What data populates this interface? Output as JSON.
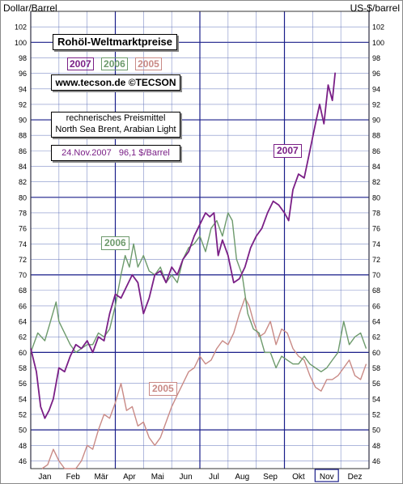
{
  "header": {
    "left_unit": "Dollar/Barrel",
    "right_unit": "US-$/barrel"
  },
  "panel": {
    "title": "Rohöl-Weltmarktpreise",
    "year_2007": "2007",
    "year_2006": "2006",
    "year_2005": "2005",
    "website": "www.tecson.de  ©TECSON",
    "desc_line1": "rechnerisches Preismittel",
    "desc_line2": "North Sea Brent, Arabian Light",
    "date": "24.Nov.2007",
    "price": "96,1  $/Barrel"
  },
  "colors": {
    "2007": "#7a1f86",
    "2006": "#6d9a6c",
    "2005": "#c98a86",
    "grid": "#4a5fb0",
    "grid_major": "#1a1f8a",
    "highlight": "#1a1f8a"
  },
  "chart_data": {
    "type": "line",
    "title": "Rohöl-Weltmarktpreise",
    "xlabel": "",
    "ylabel": "Dollar/Barrel",
    "ylim": [
      45,
      104
    ],
    "y_ticks": [
      46,
      48,
      50,
      52,
      54,
      56,
      58,
      60,
      62,
      64,
      66,
      68,
      70,
      72,
      74,
      76,
      78,
      80,
      82,
      84,
      86,
      88,
      90,
      92,
      94,
      96,
      98,
      100,
      102
    ],
    "categories": [
      "Jan",
      "Feb",
      "Mär",
      "Apr",
      "Mai",
      "Jun",
      "Jul",
      "Aug",
      "Sep",
      "Okt",
      "Nov",
      "Dez"
    ],
    "highlighted_category": "Nov",
    "series": [
      {
        "name": "2007",
        "points": [
          [
            0.0,
            60.5
          ],
          [
            0.2,
            57.5
          ],
          [
            0.35,
            53
          ],
          [
            0.5,
            51.5
          ],
          [
            0.65,
            52.5
          ],
          [
            0.8,
            54
          ],
          [
            1.0,
            58
          ],
          [
            1.2,
            57.5
          ],
          [
            1.4,
            59.5
          ],
          [
            1.6,
            61
          ],
          [
            1.8,
            60.5
          ],
          [
            2.0,
            61.5
          ],
          [
            2.2,
            60
          ],
          [
            2.4,
            62
          ],
          [
            2.6,
            61.5
          ],
          [
            2.8,
            65
          ],
          [
            3.0,
            67.5
          ],
          [
            3.2,
            67
          ],
          [
            3.4,
            68.5
          ],
          [
            3.6,
            70
          ],
          [
            3.8,
            69
          ],
          [
            4.0,
            65
          ],
          [
            4.2,
            67
          ],
          [
            4.4,
            70
          ],
          [
            4.6,
            70.5
          ],
          [
            4.8,
            69
          ],
          [
            5.0,
            71
          ],
          [
            5.2,
            70
          ],
          [
            5.4,
            72
          ],
          [
            5.6,
            73
          ],
          [
            5.8,
            75
          ],
          [
            6.0,
            76.5
          ],
          [
            6.2,
            78
          ],
          [
            6.35,
            77.5
          ],
          [
            6.5,
            78
          ],
          [
            6.65,
            72.5
          ],
          [
            6.8,
            74.5
          ],
          [
            7.0,
            72.5
          ],
          [
            7.2,
            69
          ],
          [
            7.4,
            69.5
          ],
          [
            7.6,
            71
          ],
          [
            7.8,
            73.5
          ],
          [
            8.0,
            75
          ],
          [
            8.2,
            76
          ],
          [
            8.4,
            78
          ],
          [
            8.6,
            79.5
          ],
          [
            8.8,
            79
          ],
          [
            9.0,
            78
          ],
          [
            9.15,
            77
          ],
          [
            9.3,
            81
          ],
          [
            9.5,
            83
          ],
          [
            9.7,
            82.5
          ],
          [
            9.9,
            86
          ],
          [
            10.1,
            89.5
          ],
          [
            10.25,
            92
          ],
          [
            10.4,
            89.5
          ],
          [
            10.55,
            94.5
          ],
          [
            10.7,
            92.5
          ],
          [
            10.8,
            96.1
          ]
        ]
      },
      {
        "name": "2006",
        "points": [
          [
            0.0,
            60
          ],
          [
            0.25,
            62.5
          ],
          [
            0.5,
            61.5
          ],
          [
            0.7,
            64
          ],
          [
            0.9,
            66.5
          ],
          [
            1.0,
            64
          ],
          [
            1.2,
            62.5
          ],
          [
            1.4,
            61
          ],
          [
            1.6,
            60
          ],
          [
            1.8,
            60.5
          ],
          [
            2.0,
            61
          ],
          [
            2.2,
            61
          ],
          [
            2.4,
            62.5
          ],
          [
            2.6,
            62
          ],
          [
            2.8,
            63
          ],
          [
            3.0,
            66
          ],
          [
            3.2,
            70
          ],
          [
            3.35,
            72.5
          ],
          [
            3.5,
            71
          ],
          [
            3.65,
            74
          ],
          [
            3.8,
            71
          ],
          [
            4.0,
            72.5
          ],
          [
            4.2,
            70.5
          ],
          [
            4.4,
            70
          ],
          [
            4.6,
            71
          ],
          [
            4.8,
            69
          ],
          [
            5.0,
            70
          ],
          [
            5.2,
            69
          ],
          [
            5.4,
            72
          ],
          [
            5.6,
            73.5
          ],
          [
            5.8,
            74
          ],
          [
            6.0,
            75
          ],
          [
            6.2,
            73
          ],
          [
            6.4,
            76
          ],
          [
            6.6,
            77
          ],
          [
            6.8,
            75
          ],
          [
            7.0,
            78
          ],
          [
            7.15,
            77
          ],
          [
            7.3,
            72
          ],
          [
            7.5,
            70
          ],
          [
            7.7,
            65
          ],
          [
            7.9,
            63
          ],
          [
            8.1,
            62.5
          ],
          [
            8.3,
            60
          ],
          [
            8.5,
            60
          ],
          [
            8.7,
            58
          ],
          [
            8.9,
            59.5
          ],
          [
            9.1,
            59
          ],
          [
            9.3,
            58.5
          ],
          [
            9.5,
            58.5
          ],
          [
            9.7,
            59.5
          ],
          [
            9.9,
            58.5
          ],
          [
            10.1,
            58
          ],
          [
            10.3,
            57.5
          ],
          [
            10.5,
            58
          ],
          [
            10.7,
            59
          ],
          [
            10.9,
            60
          ],
          [
            11.1,
            64
          ],
          [
            11.3,
            61
          ],
          [
            11.5,
            62
          ],
          [
            11.7,
            62.5
          ],
          [
            11.9,
            60.5
          ]
        ]
      },
      {
        "name": "2005",
        "points": [
          [
            0.4,
            44.5
          ],
          [
            0.6,
            45.5
          ],
          [
            0.8,
            47.5
          ],
          [
            1.0,
            46
          ],
          [
            1.2,
            44
          ],
          [
            1.4,
            43
          ],
          [
            1.6,
            44
          ],
          [
            1.8,
            46
          ],
          [
            2.0,
            48
          ],
          [
            2.2,
            47.5
          ],
          [
            2.4,
            50
          ],
          [
            2.6,
            52
          ],
          [
            2.8,
            51.5
          ],
          [
            3.0,
            53.5
          ],
          [
            3.2,
            56
          ],
          [
            3.4,
            52.5
          ],
          [
            3.6,
            53
          ],
          [
            3.8,
            50.5
          ],
          [
            4.0,
            51
          ],
          [
            4.2,
            49
          ],
          [
            4.4,
            48
          ],
          [
            4.6,
            49
          ],
          [
            4.8,
            51
          ],
          [
            5.0,
            53
          ],
          [
            5.2,
            54.5
          ],
          [
            5.4,
            56
          ],
          [
            5.6,
            57.5
          ],
          [
            5.8,
            58
          ],
          [
            6.0,
            59.5
          ],
          [
            6.2,
            58.5
          ],
          [
            6.4,
            59
          ],
          [
            6.6,
            60.5
          ],
          [
            6.8,
            61.5
          ],
          [
            7.0,
            61
          ],
          [
            7.2,
            62.5
          ],
          [
            7.4,
            65
          ],
          [
            7.6,
            67
          ],
          [
            7.75,
            66
          ],
          [
            7.9,
            64
          ],
          [
            8.1,
            62
          ],
          [
            8.3,
            62.5
          ],
          [
            8.5,
            64
          ],
          [
            8.7,
            61
          ],
          [
            8.9,
            63
          ],
          [
            9.1,
            62.5
          ],
          [
            9.3,
            60.5
          ],
          [
            9.5,
            59.5
          ],
          [
            9.7,
            59
          ],
          [
            9.9,
            57
          ],
          [
            10.1,
            55.5
          ],
          [
            10.3,
            55
          ],
          [
            10.5,
            56.5
          ],
          [
            10.7,
            56.5
          ],
          [
            10.9,
            57
          ],
          [
            11.1,
            58
          ],
          [
            11.3,
            59
          ],
          [
            11.5,
            57
          ],
          [
            11.7,
            56.5
          ],
          [
            11.9,
            58.5
          ]
        ]
      }
    ]
  }
}
